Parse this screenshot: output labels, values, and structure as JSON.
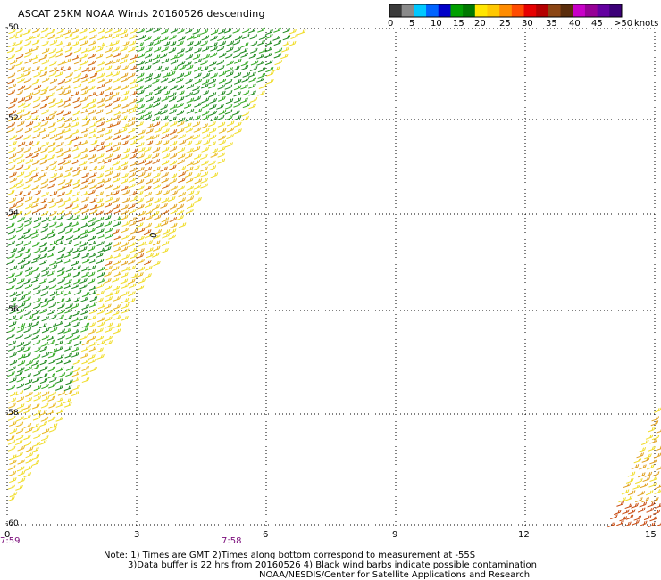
{
  "title": "ASCAT 25KM NOAA Winds 20160526 descending",
  "colorbar": {
    "labels": [
      "0",
      "5",
      "10",
      "15",
      "20",
      "25",
      "30",
      "35",
      "40",
      "45",
      ">50"
    ],
    "units": "knots",
    "colors": [
      "#3a3a3a",
      "#8a8a8a",
      "#00c8ff",
      "#0064ff",
      "#0000c8",
      "#00a000",
      "#007800",
      "#ffe600",
      "#ffc800",
      "#ff8c00",
      "#ff4b00",
      "#e60000",
      "#b40000",
      "#8b4513",
      "#5a2d0c",
      "#c800c8",
      "#960096",
      "#6400a0",
      "#3c0078"
    ]
  },
  "y_axis": {
    "labels": [
      "-50",
      "-52",
      "-54",
      "-56",
      "-58",
      "-60"
    ]
  },
  "x_axis": {
    "labels": [
      "0",
      "3",
      "6",
      "9",
      "12",
      "15"
    ]
  },
  "times": {
    "t1": "7:59",
    "t2": "7:58"
  },
  "notes": {
    "line1": "Note: 1) Times are GMT 2)Times along bottom correspond to measurement at -55S",
    "line2": "3)Data buffer is 22 hrs from 20160526 4) Black wind barbs indicate possible contamination",
    "line3": "NOAA/NESDIS/Center for Satellite Applications and Research"
  },
  "map_marker": {
    "text": "0"
  }
}
